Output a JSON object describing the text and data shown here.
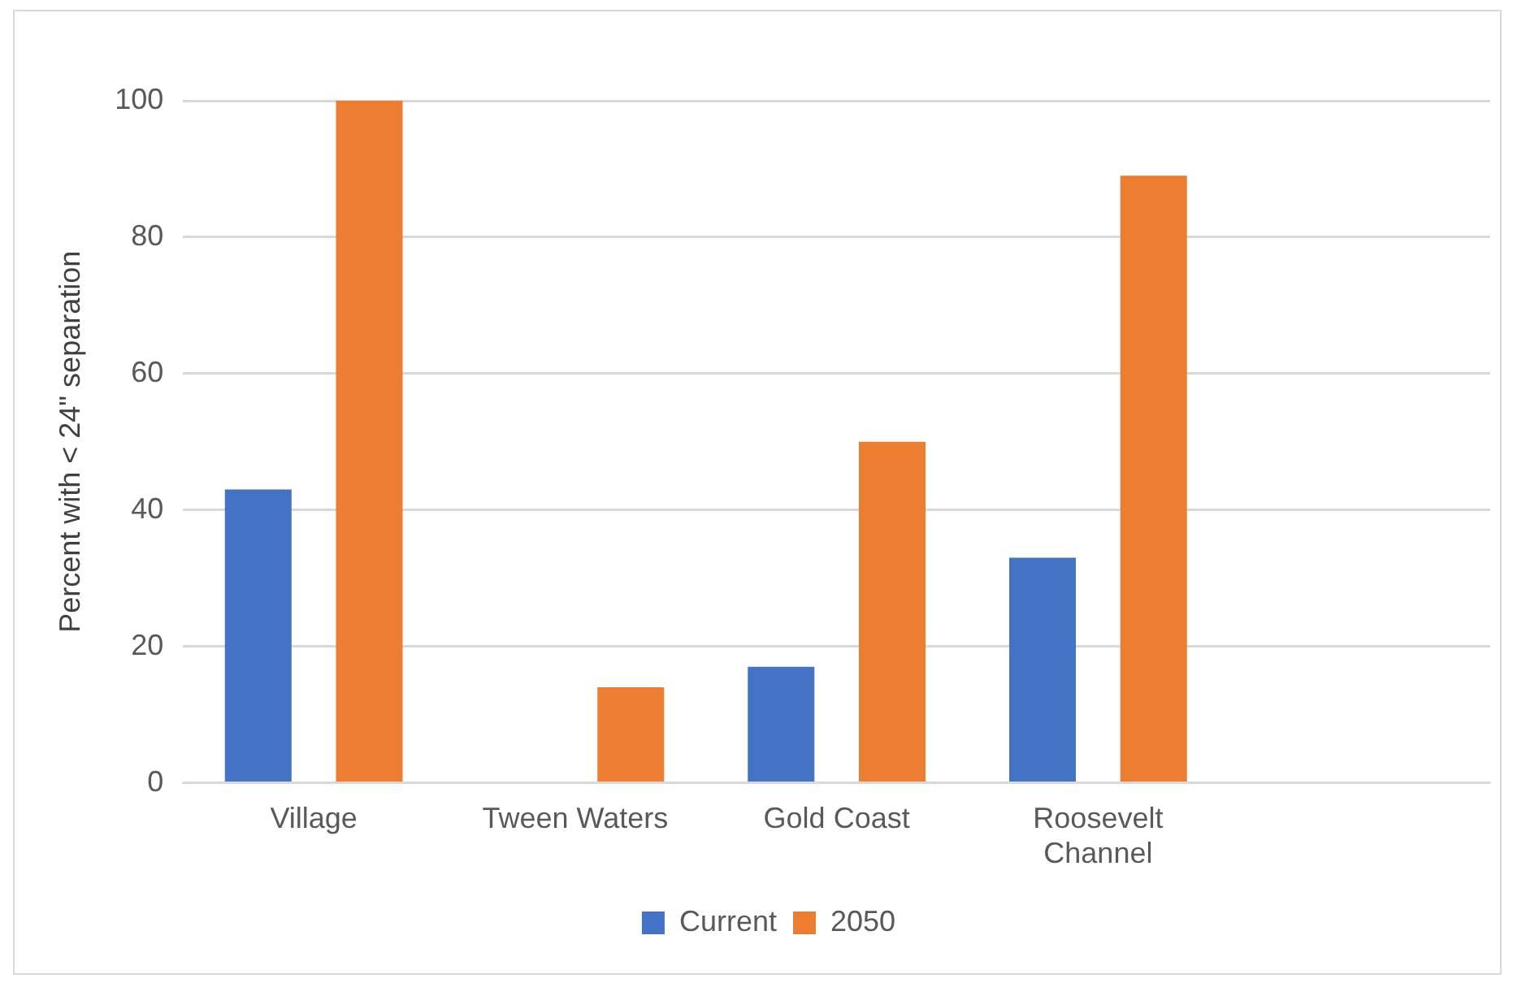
{
  "chart_data": {
    "type": "bar",
    "ylabel": "Percent with < 24\" separation",
    "categories": [
      "Village",
      "Tween Waters",
      "Gold Coast",
      "Roosevelt Channel",
      null
    ],
    "series": [
      {
        "name": "Current",
        "color": "#4472c4",
        "values": [
          43,
          0,
          17,
          33,
          null
        ]
      },
      {
        "name": "2050",
        "color": "#ed7d31",
        "values": [
          100,
          14,
          50,
          89,
          null
        ]
      }
    ],
    "ylim": [
      0,
      100
    ],
    "yticks": [
      0,
      20,
      40,
      60,
      80,
      100
    ],
    "grid": "y",
    "legend": "bottom"
  }
}
